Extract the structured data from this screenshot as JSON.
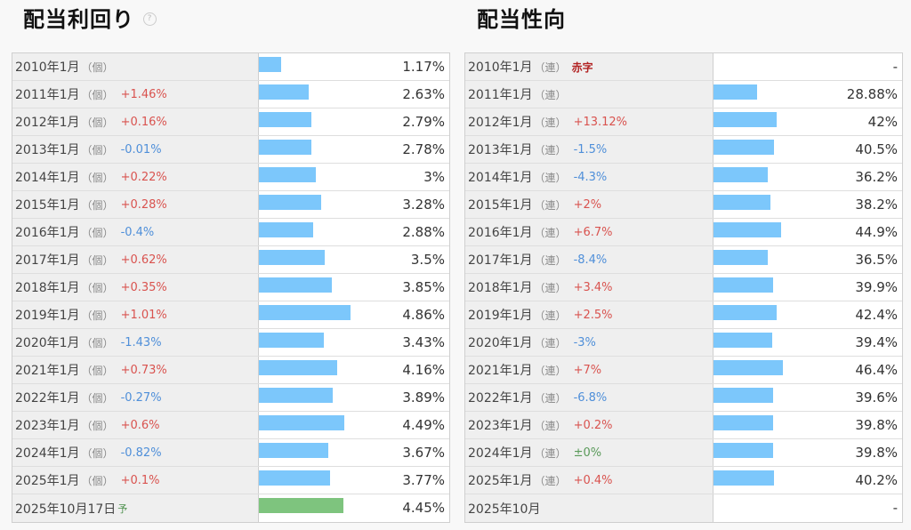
{
  "left": {
    "title": "配当利回り",
    "help_icon": "question-circle-icon",
    "max_value": 5.5,
    "rows": [
      {
        "label": "2010年1月",
        "tag": "（個）",
        "change": "",
        "change_type": "",
        "value": 1.17,
        "value_text": "1.17%",
        "forecast": false
      },
      {
        "label": "2011年1月",
        "tag": "（個）",
        "change": "+1.46%",
        "change_type": "pos",
        "value": 2.63,
        "value_text": "2.63%",
        "forecast": false
      },
      {
        "label": "2012年1月",
        "tag": "（個）",
        "change": "+0.16%",
        "change_type": "pos",
        "value": 2.79,
        "value_text": "2.79%",
        "forecast": false
      },
      {
        "label": "2013年1月",
        "tag": "（個）",
        "change": "-0.01%",
        "change_type": "neg",
        "value": 2.78,
        "value_text": "2.78%",
        "forecast": false
      },
      {
        "label": "2014年1月",
        "tag": "（個）",
        "change": "+0.22%",
        "change_type": "pos",
        "value": 3.0,
        "value_text": "3%",
        "forecast": false
      },
      {
        "label": "2015年1月",
        "tag": "（個）",
        "change": "+0.28%",
        "change_type": "pos",
        "value": 3.28,
        "value_text": "3.28%",
        "forecast": false
      },
      {
        "label": "2016年1月",
        "tag": "（個）",
        "change": "-0.4%",
        "change_type": "neg",
        "value": 2.88,
        "value_text": "2.88%",
        "forecast": false
      },
      {
        "label": "2017年1月",
        "tag": "（個）",
        "change": "+0.62%",
        "change_type": "pos",
        "value": 3.5,
        "value_text": "3.5%",
        "forecast": false
      },
      {
        "label": "2018年1月",
        "tag": "（個）",
        "change": "+0.35%",
        "change_type": "pos",
        "value": 3.85,
        "value_text": "3.85%",
        "forecast": false
      },
      {
        "label": "2019年1月",
        "tag": "（個）",
        "change": "+1.01%",
        "change_type": "pos",
        "value": 4.86,
        "value_text": "4.86%",
        "forecast": false
      },
      {
        "label": "2020年1月",
        "tag": "（個）",
        "change": "-1.43%",
        "change_type": "neg",
        "value": 3.43,
        "value_text": "3.43%",
        "forecast": false
      },
      {
        "label": "2021年1月",
        "tag": "（個）",
        "change": "+0.73%",
        "change_type": "pos",
        "value": 4.16,
        "value_text": "4.16%",
        "forecast": false
      },
      {
        "label": "2022年1月",
        "tag": "（個）",
        "change": "-0.27%",
        "change_type": "neg",
        "value": 3.89,
        "value_text": "3.89%",
        "forecast": false
      },
      {
        "label": "2023年1月",
        "tag": "（個）",
        "change": "+0.6%",
        "change_type": "pos",
        "value": 4.49,
        "value_text": "4.49%",
        "forecast": false
      },
      {
        "label": "2024年1月",
        "tag": "（個）",
        "change": "-0.82%",
        "change_type": "neg",
        "value": 3.67,
        "value_text": "3.67%",
        "forecast": false
      },
      {
        "label": "2025年1月",
        "tag": "（個）",
        "change": "+0.1%",
        "change_type": "pos",
        "value": 3.77,
        "value_text": "3.77%",
        "forecast": false
      },
      {
        "label": "2025年10月17日",
        "tag": "",
        "change": "予",
        "change_type": "yo",
        "value": 4.45,
        "value_text": "4.45%",
        "forecast": true
      }
    ]
  },
  "right": {
    "title": "配当性向",
    "max_value": 76,
    "rows": [
      {
        "label": "2010年1月",
        "tag": "（連）",
        "change": "赤字",
        "change_type": "deficit",
        "value": 0,
        "value_text": "-"
      },
      {
        "label": "2011年1月",
        "tag": "（連）",
        "change": "",
        "change_type": "",
        "value": 28.88,
        "value_text": "28.88%"
      },
      {
        "label": "2012年1月",
        "tag": "（連）",
        "change": "+13.12%",
        "change_type": "pos",
        "value": 42,
        "value_text": "42%"
      },
      {
        "label": "2013年1月",
        "tag": "（連）",
        "change": "-1.5%",
        "change_type": "neg",
        "value": 40.5,
        "value_text": "40.5%"
      },
      {
        "label": "2014年1月",
        "tag": "（連）",
        "change": "-4.3%",
        "change_type": "neg",
        "value": 36.2,
        "value_text": "36.2%"
      },
      {
        "label": "2015年1月",
        "tag": "（連）",
        "change": "+2%",
        "change_type": "pos",
        "value": 38.2,
        "value_text": "38.2%"
      },
      {
        "label": "2016年1月",
        "tag": "（連）",
        "change": "+6.7%",
        "change_type": "pos",
        "value": 44.9,
        "value_text": "44.9%"
      },
      {
        "label": "2017年1月",
        "tag": "（連）",
        "change": "-8.4%",
        "change_type": "neg",
        "value": 36.5,
        "value_text": "36.5%"
      },
      {
        "label": "2018年1月",
        "tag": "（連）",
        "change": "+3.4%",
        "change_type": "pos",
        "value": 39.9,
        "value_text": "39.9%"
      },
      {
        "label": "2019年1月",
        "tag": "（連）",
        "change": "+2.5%",
        "change_type": "pos",
        "value": 42.4,
        "value_text": "42.4%"
      },
      {
        "label": "2020年1月",
        "tag": "（連）",
        "change": "-3%",
        "change_type": "neg",
        "value": 39.4,
        "value_text": "39.4%"
      },
      {
        "label": "2021年1月",
        "tag": "（連）",
        "change": "+7%",
        "change_type": "pos",
        "value": 46.4,
        "value_text": "46.4%"
      },
      {
        "label": "2022年1月",
        "tag": "（連）",
        "change": "-6.8%",
        "change_type": "neg",
        "value": 39.6,
        "value_text": "39.6%"
      },
      {
        "label": "2023年1月",
        "tag": "（連）",
        "change": "+0.2%",
        "change_type": "pos",
        "value": 39.8,
        "value_text": "39.8%"
      },
      {
        "label": "2024年1月",
        "tag": "（連）",
        "change": "±0%",
        "change_type": "zero",
        "value": 39.8,
        "value_text": "39.8%"
      },
      {
        "label": "2025年1月",
        "tag": "（連）",
        "change": "+0.4%",
        "change_type": "pos",
        "value": 40.2,
        "value_text": "40.2%"
      },
      {
        "label": "2025年10月",
        "tag": "",
        "change": "",
        "change_type": "",
        "value": 0,
        "value_text": "-"
      }
    ]
  },
  "colors": {
    "bar": "#7cc7fb",
    "forecast_bar": "#7ec47e",
    "positive": "#d9534f",
    "negative": "#4f8fd9",
    "zero": "#5a9a5a",
    "deficit": "#b22222"
  }
}
